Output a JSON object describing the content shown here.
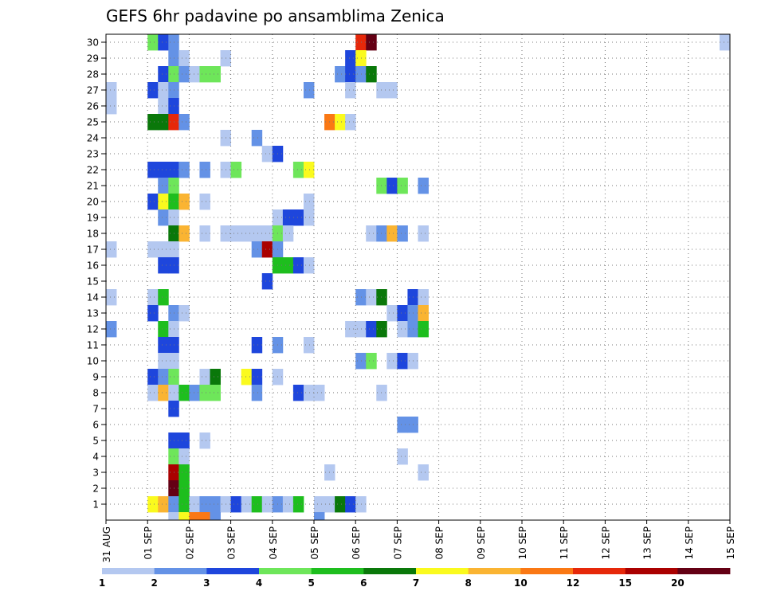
{
  "chart_data": {
    "type": "heatmap",
    "title": "GEFS 6hr padavine po ansamblima Zenica",
    "xlabel": "",
    "ylabel": "",
    "x_ticks": [
      "31 AUG",
      "01 SEP",
      "02 SEP",
      "03 SEP",
      "04 SEP",
      "05 SEP",
      "06 SEP",
      "07 SEP",
      "08 SEP",
      "09 SEP",
      "10 SEP",
      "11 SEP",
      "12 SEP",
      "13 SEP",
      "14 SEP",
      "15 SEP"
    ],
    "y_ticks": [
      "1",
      "2",
      "3",
      "4",
      "5",
      "6",
      "7",
      "8",
      "9",
      "10",
      "11",
      "12",
      "13",
      "14",
      "15",
      "16",
      "17",
      "18",
      "19",
      "20",
      "21",
      "22",
      "23",
      "24",
      "25",
      "26",
      "27",
      "28",
      "29",
      "30"
    ],
    "x_unit": "6-hour step since 31 AUG",
    "xlim": [
      0,
      60
    ],
    "ylim": [
      0,
      30
    ],
    "grid": true,
    "legend_placement": "bottom",
    "legend_bounds": [
      "1",
      "2",
      "3",
      "4",
      "5",
      "6",
      "7",
      "8",
      "10",
      "12",
      "15",
      "20"
    ],
    "legend_colors": [
      "#b4c8f0",
      "#6492e6",
      "#1e46dc",
      "#6ee65a",
      "#1ebe1e",
      "#0a780a",
      "#fafa1e",
      "#fab432",
      "#fa7814",
      "#e6280a",
      "#aa0000",
      "#640014"
    ],
    "cells": [
      [
        4,
        30,
        "#6ee65a"
      ],
      [
        5,
        30,
        "#1e46dc"
      ],
      [
        6,
        30,
        "#6492e6"
      ],
      [
        24,
        30,
        "#e6280a"
      ],
      [
        25,
        30,
        "#640014"
      ],
      [
        59,
        30,
        "#b4c8f0"
      ],
      [
        6,
        29,
        "#6492e6"
      ],
      [
        7,
        29,
        "#b4c8f0"
      ],
      [
        11,
        29,
        "#b4c8f0"
      ],
      [
        23,
        29,
        "#1e46dc"
      ],
      [
        24,
        29,
        "#fafa1e"
      ],
      [
        5,
        28,
        "#1e46dc"
      ],
      [
        6,
        28,
        "#6ee65a"
      ],
      [
        7,
        28,
        "#6492e6"
      ],
      [
        8,
        28,
        "#b4c8f0"
      ],
      [
        9,
        28,
        "#6ee65a"
      ],
      [
        10,
        28,
        "#6ee65a"
      ],
      [
        22,
        28,
        "#6492e6"
      ],
      [
        23,
        28,
        "#1e46dc"
      ],
      [
        24,
        28,
        "#6492e6"
      ],
      [
        25,
        28,
        "#0a780a"
      ],
      [
        0,
        27,
        "#b4c8f0"
      ],
      [
        4,
        27,
        "#1e46dc"
      ],
      [
        5,
        27,
        "#b4c8f0"
      ],
      [
        6,
        27,
        "#6492e6"
      ],
      [
        19,
        27,
        "#6492e6"
      ],
      [
        23,
        27,
        "#b4c8f0"
      ],
      [
        26,
        27,
        "#b4c8f0"
      ],
      [
        27,
        27,
        "#b4c8f0"
      ],
      [
        0,
        26,
        "#b4c8f0"
      ],
      [
        5,
        26,
        "#b4c8f0"
      ],
      [
        6,
        26,
        "#1e46dc"
      ],
      [
        4,
        25,
        "#0a780a"
      ],
      [
        5,
        25,
        "#0a780a"
      ],
      [
        6,
        25,
        "#e6280a"
      ],
      [
        7,
        25,
        "#6492e6"
      ],
      [
        21,
        25,
        "#fa7814"
      ],
      [
        22,
        25,
        "#fafa1e"
      ],
      [
        23,
        25,
        "#b4c8f0"
      ],
      [
        11,
        24,
        "#b4c8f0"
      ],
      [
        14,
        24,
        "#6492e6"
      ],
      [
        15,
        23,
        "#b4c8f0"
      ],
      [
        16,
        23,
        "#1e46dc"
      ],
      [
        4,
        22,
        "#1e46dc"
      ],
      [
        5,
        22,
        "#1e46dc"
      ],
      [
        6,
        22,
        "#1e46dc"
      ],
      [
        7,
        22,
        "#6492e6"
      ],
      [
        9,
        22,
        "#6492e6"
      ],
      [
        11,
        22,
        "#b4c8f0"
      ],
      [
        12,
        22,
        "#6ee65a"
      ],
      [
        18,
        22,
        "#6ee65a"
      ],
      [
        19,
        22,
        "#fafa1e"
      ],
      [
        5,
        21,
        "#6492e6"
      ],
      [
        6,
        21,
        "#6ee65a"
      ],
      [
        26,
        21,
        "#6ee65a"
      ],
      [
        27,
        21,
        "#1e46dc"
      ],
      [
        28,
        21,
        "#6ee65a"
      ],
      [
        30,
        21,
        "#6492e6"
      ],
      [
        4,
        20,
        "#1e46dc"
      ],
      [
        5,
        20,
        "#fafa1e"
      ],
      [
        6,
        20,
        "#1ebe1e"
      ],
      [
        7,
        20,
        "#fab432"
      ],
      [
        9,
        20,
        "#b4c8f0"
      ],
      [
        19,
        20,
        "#b4c8f0"
      ],
      [
        5,
        19,
        "#6492e6"
      ],
      [
        6,
        19,
        "#b4c8f0"
      ],
      [
        16,
        19,
        "#b4c8f0"
      ],
      [
        17,
        19,
        "#1e46dc"
      ],
      [
        18,
        19,
        "#1e46dc"
      ],
      [
        19,
        19,
        "#b4c8f0"
      ],
      [
        6,
        18,
        "#0a780a"
      ],
      [
        7,
        18,
        "#fab432"
      ],
      [
        9,
        18,
        "#b4c8f0"
      ],
      [
        11,
        18,
        "#b4c8f0"
      ],
      [
        12,
        18,
        "#b4c8f0"
      ],
      [
        13,
        18,
        "#b4c8f0"
      ],
      [
        14,
        18,
        "#b4c8f0"
      ],
      [
        15,
        18,
        "#b4c8f0"
      ],
      [
        16,
        18,
        "#6ee65a"
      ],
      [
        17,
        18,
        "#b4c8f0"
      ],
      [
        25,
        18,
        "#b4c8f0"
      ],
      [
        26,
        18,
        "#6492e6"
      ],
      [
        27,
        18,
        "#fab432"
      ],
      [
        28,
        18,
        "#6492e6"
      ],
      [
        30,
        18,
        "#b4c8f0"
      ],
      [
        0,
        17,
        "#b4c8f0"
      ],
      [
        4,
        17,
        "#b4c8f0"
      ],
      [
        5,
        17,
        "#b4c8f0"
      ],
      [
        6,
        17,
        "#b4c8f0"
      ],
      [
        14,
        17,
        "#6492e6"
      ],
      [
        15,
        17,
        "#aa0000"
      ],
      [
        16,
        17,
        "#6492e6"
      ],
      [
        5,
        16,
        "#1e46dc"
      ],
      [
        6,
        16,
        "#1e46dc"
      ],
      [
        16,
        16,
        "#1ebe1e"
      ],
      [
        17,
        16,
        "#1ebe1e"
      ],
      [
        18,
        16,
        "#1e46dc"
      ],
      [
        19,
        16,
        "#b4c8f0"
      ],
      [
        15,
        15,
        "#1e46dc"
      ],
      [
        0,
        14,
        "#b4c8f0"
      ],
      [
        4,
        14,
        "#b4c8f0"
      ],
      [
        5,
        14,
        "#1ebe1e"
      ],
      [
        24,
        14,
        "#6492e6"
      ],
      [
        25,
        14,
        "#b4c8f0"
      ],
      [
        26,
        14,
        "#0a780a"
      ],
      [
        29,
        14,
        "#1e46dc"
      ],
      [
        30,
        14,
        "#b4c8f0"
      ],
      [
        4,
        13,
        "#1e46dc"
      ],
      [
        6,
        13,
        "#6492e6"
      ],
      [
        7,
        13,
        "#b4c8f0"
      ],
      [
        27,
        13,
        "#b4c8f0"
      ],
      [
        28,
        13,
        "#1e46dc"
      ],
      [
        29,
        13,
        "#6492e6"
      ],
      [
        30,
        13,
        "#fab432"
      ],
      [
        0,
        12,
        "#6492e6"
      ],
      [
        5,
        12,
        "#1ebe1e"
      ],
      [
        6,
        12,
        "#b4c8f0"
      ],
      [
        23,
        12,
        "#b4c8f0"
      ],
      [
        24,
        12,
        "#b4c8f0"
      ],
      [
        25,
        12,
        "#1e46dc"
      ],
      [
        26,
        12,
        "#0a780a"
      ],
      [
        28,
        12,
        "#b4c8f0"
      ],
      [
        29,
        12,
        "#6492e6"
      ],
      [
        30,
        12,
        "#1ebe1e"
      ],
      [
        5,
        11,
        "#1e46dc"
      ],
      [
        6,
        11,
        "#1e46dc"
      ],
      [
        14,
        11,
        "#1e46dc"
      ],
      [
        16,
        11,
        "#6492e6"
      ],
      [
        19,
        11,
        "#b4c8f0"
      ],
      [
        5,
        10,
        "#b4c8f0"
      ],
      [
        6,
        10,
        "#b4c8f0"
      ],
      [
        24,
        10,
        "#6492e6"
      ],
      [
        25,
        10,
        "#6ee65a"
      ],
      [
        27,
        10,
        "#b4c8f0"
      ],
      [
        28,
        10,
        "#1e46dc"
      ],
      [
        29,
        10,
        "#b4c8f0"
      ],
      [
        4,
        9,
        "#1e46dc"
      ],
      [
        5,
        9,
        "#6492e6"
      ],
      [
        6,
        9,
        "#6ee65a"
      ],
      [
        9,
        9,
        "#b4c8f0"
      ],
      [
        10,
        9,
        "#0a780a"
      ],
      [
        13,
        9,
        "#fafa1e"
      ],
      [
        14,
        9,
        "#1e46dc"
      ],
      [
        16,
        9,
        "#b4c8f0"
      ],
      [
        4,
        8,
        "#b4c8f0"
      ],
      [
        5,
        8,
        "#fab432"
      ],
      [
        6,
        8,
        "#b4c8f0"
      ],
      [
        7,
        8,
        "#1ebe1e"
      ],
      [
        8,
        8,
        "#6492e6"
      ],
      [
        9,
        8,
        "#6ee65a"
      ],
      [
        10,
        8,
        "#6ee65a"
      ],
      [
        14,
        8,
        "#6492e6"
      ],
      [
        18,
        8,
        "#1e46dc"
      ],
      [
        19,
        8,
        "#b4c8f0"
      ],
      [
        20,
        8,
        "#b4c8f0"
      ],
      [
        26,
        8,
        "#b4c8f0"
      ],
      [
        6,
        7,
        "#1e46dc"
      ],
      [
        28,
        6,
        "#6492e6"
      ],
      [
        29,
        6,
        "#6492e6"
      ],
      [
        6,
        5,
        "#1e46dc"
      ],
      [
        7,
        5,
        "#1e46dc"
      ],
      [
        9,
        5,
        "#b4c8f0"
      ],
      [
        6,
        4,
        "#6ee65a"
      ],
      [
        7,
        4,
        "#b4c8f0"
      ],
      [
        28,
        4,
        "#b4c8f0"
      ],
      [
        6,
        3,
        "#aa0000"
      ],
      [
        7,
        3,
        "#1ebe1e"
      ],
      [
        21,
        3,
        "#b4c8f0"
      ],
      [
        30,
        3,
        "#b4c8f0"
      ],
      [
        6,
        2,
        "#640014"
      ],
      [
        7,
        2,
        "#1ebe1e"
      ],
      [
        4,
        1,
        "#fafa1e"
      ],
      [
        5,
        1,
        "#fab432"
      ],
      [
        6,
        1,
        "#6492e6"
      ],
      [
        7,
        1,
        "#1ebe1e"
      ],
      [
        8,
        1,
        "#b4c8f0"
      ],
      [
        9,
        1,
        "#6492e6"
      ],
      [
        10,
        1,
        "#6492e6"
      ],
      [
        11,
        1,
        "#b4c8f0"
      ],
      [
        12,
        1,
        "#1e46dc"
      ],
      [
        13,
        1,
        "#b4c8f0"
      ],
      [
        14,
        1,
        "#1ebe1e"
      ],
      [
        15,
        1,
        "#b4c8f0"
      ],
      [
        16,
        1,
        "#6492e6"
      ],
      [
        17,
        1,
        "#b4c8f0"
      ],
      [
        18,
        1,
        "#1ebe1e"
      ],
      [
        20,
        1,
        "#b4c8f0"
      ],
      [
        21,
        1,
        "#b4c8f0"
      ],
      [
        22,
        1,
        "#0a780a"
      ],
      [
        23,
        1,
        "#1e46dc"
      ],
      [
        24,
        1,
        "#b4c8f0"
      ],
      [
        6,
        0,
        "#b4c8f0"
      ],
      [
        7,
        0,
        "#fafa1e"
      ],
      [
        8,
        0,
        "#fa7814"
      ],
      [
        9,
        0,
        "#fa7814"
      ],
      [
        10,
        0,
        "#6492e6"
      ],
      [
        20,
        0,
        "#6492e6"
      ]
    ]
  }
}
